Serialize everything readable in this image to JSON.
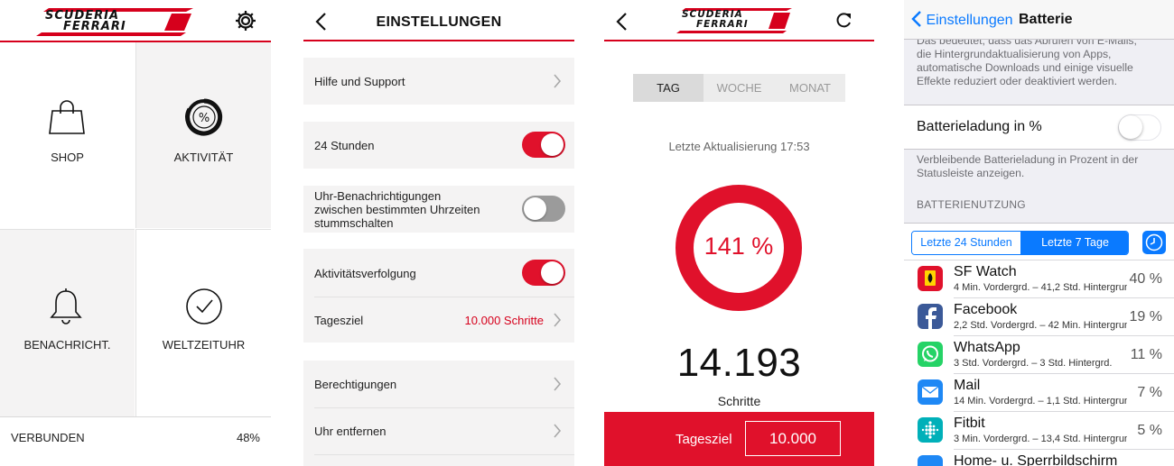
{
  "panel1": {
    "brand": "Scuderia Ferrari",
    "tiles": [
      {
        "label": "SHOP",
        "icon": "shopping-bag-icon"
      },
      {
        "label": "AKTIVITÄT",
        "icon": "activity-percent-icon"
      },
      {
        "label": "BENACHRICHT.",
        "icon": "bell-icon"
      },
      {
        "label": "WELTZEITUHR",
        "icon": "clock-icon"
      }
    ],
    "status": {
      "label": "VERBUNDEN",
      "battery": "48%"
    },
    "colors": {
      "accent": "#d6001c"
    }
  },
  "panel2": {
    "title": "EINSTELLUNGEN",
    "rows": {
      "help": "Hilfe und Support",
      "hours24": "24 Stunden",
      "mute_line1": "Uhr-Benachrichtigungen",
      "mute_line2": "zwischen bestimmten Uhrzeiten",
      "mute_line3": "stummschalten",
      "tracking": "Aktivitätsverfolgung",
      "goal": "Tagesziel",
      "goal_value": "10.000 Schritte",
      "permissions": "Berechtigungen",
      "remove": "Uhr entfernen"
    },
    "toggles": {
      "hours24": true,
      "mute": false,
      "tracking": true
    }
  },
  "panel3": {
    "brand": "Scuderia Ferrari",
    "tabs": [
      "TAG",
      "WOCHE",
      "MONAT"
    ],
    "active_tab": "TAG",
    "last_update": "Letzte Aktualisierung 17:53",
    "progress": "141 %",
    "steps": "14.193",
    "steps_label": "Schritte",
    "goal_label": "Tagesziel",
    "goal_value": "10.000"
  },
  "panel4": {
    "back_label": "Einstellungen",
    "title": "Batterie",
    "note_top": [
      "Das bedeutet, dass das Abrufen von E-Mails,",
      "die Hintergrundaktualisierung von Apps,",
      "automatische Downloads und einige visuelle",
      "Effekte reduziert oder deaktiviert werden."
    ],
    "battery_pct_label": "Batterieladung in %",
    "battery_pct_enabled": false,
    "battery_note": [
      "Verbleibende Batterieladung in Prozent in der",
      "Statusleiste anzeigen."
    ],
    "usage_header": "BATTERIENUTZUNG",
    "segments": [
      "Letzte 24 Stunden",
      "Letzte 7 Tage"
    ],
    "selected_segment": "Letzte 7 Tage",
    "apps": [
      {
        "name": "SF Watch",
        "detail": "4 Min. Vordergrd. – 41,2 Std. Hintergrund",
        "percent": "40 %",
        "icon": "ferrari-app-icon",
        "color": "#e0112b"
      },
      {
        "name": "Facebook",
        "detail": "2,2 Std. Vordergrd. – 42 Min. Hintergrund",
        "percent": "19 %",
        "icon": "facebook-app-icon",
        "color": "#3b5998"
      },
      {
        "name": "WhatsApp",
        "detail": "3 Std. Vordergrd. – 3 Std. Hintergrd.",
        "percent": "11 %",
        "icon": "whatsapp-app-icon",
        "color": "#25d366"
      },
      {
        "name": "Mail",
        "detail": "14 Min. Vordergrd. – 1,1 Std. Hintergrund",
        "percent": "7 %",
        "icon": "mail-app-icon",
        "color": "#1e88f5"
      },
      {
        "name": "Fitbit",
        "detail": "3 Min. Vordergrd. – 13,4 Std. Hintergrund",
        "percent": "5 %",
        "icon": "fitbit-app-icon",
        "color": "#00b0b9"
      },
      {
        "name": "Home- u. Sperrbildschirm",
        "detail": "",
        "percent": "",
        "icon": "home-app-icon",
        "color": "#1e88f5"
      }
    ],
    "colors": {
      "ios_blue": "#0a7aff"
    }
  }
}
